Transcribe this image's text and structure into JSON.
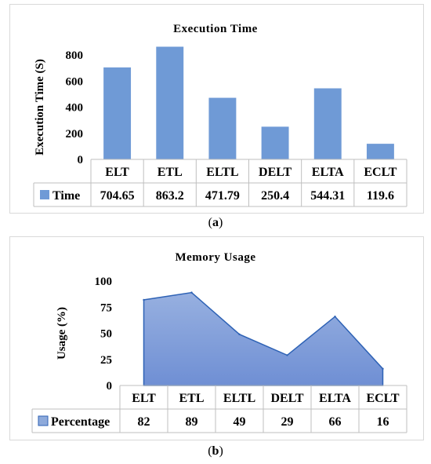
{
  "chart_data": [
    {
      "type": "bar",
      "title": "Execution Time",
      "ylabel": "Execution Time (S)",
      "xlabel": "",
      "categories": [
        "ELT",
        "ETL",
        "ELTL",
        "DELT",
        "ELTA",
        "ECLT"
      ],
      "series": [
        {
          "name": "Time",
          "values": [
            704.65,
            863.2,
            471.79,
            250.4,
            544.31,
            119.6
          ],
          "labels": [
            "704.65",
            "863.2",
            "471.79",
            "250.4",
            "544.31",
            "119.6"
          ]
        }
      ],
      "ylim": [
        0,
        800
      ],
      "yticks": [
        0,
        200,
        400,
        600,
        800
      ],
      "grid": false,
      "legend": "data-table",
      "color": "#6f9ad6"
    },
    {
      "type": "area",
      "title": "Memory Usage",
      "ylabel": "Usage (%)",
      "xlabel": "",
      "categories": [
        "ELT",
        "ETL",
        "ELTL",
        "DELT",
        "ELTA",
        "ECLT"
      ],
      "series": [
        {
          "name": "Percentage",
          "values": [
            82,
            89,
            49,
            29,
            66,
            16
          ],
          "labels": [
            "82",
            "89",
            "49",
            "29",
            "66",
            "16"
          ]
        }
      ],
      "ylim": [
        0,
        100
      ],
      "yticks": [
        0,
        25,
        50,
        75,
        100
      ],
      "grid": false,
      "legend": "data-table",
      "color": "#8eaadb",
      "line_color": "#2e62b5"
    }
  ],
  "captions": {
    "a": "a",
    "b": "b"
  }
}
